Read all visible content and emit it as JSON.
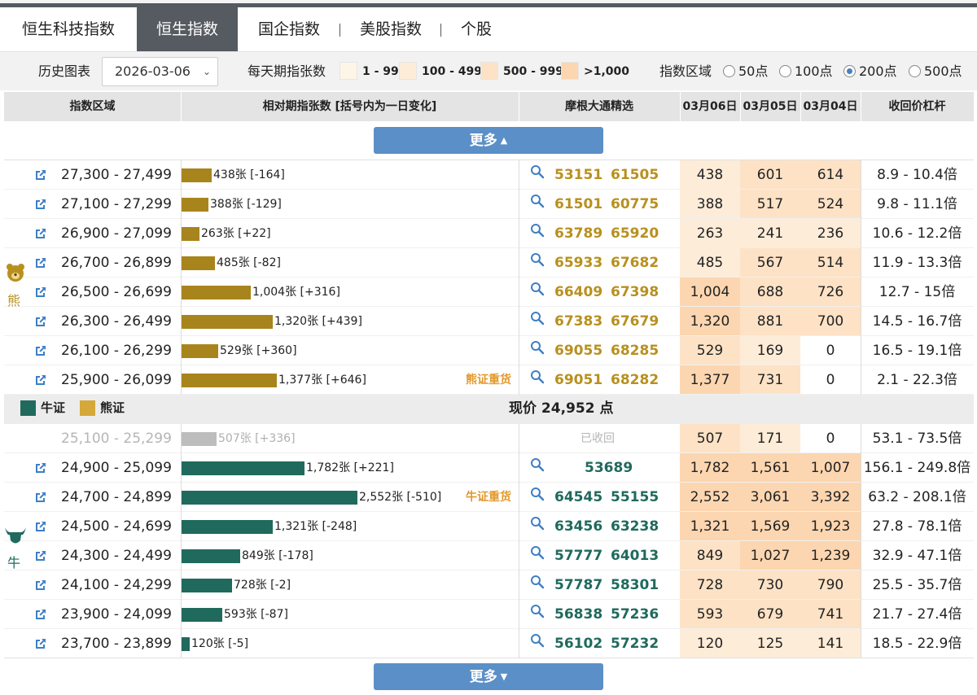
{
  "tabs": [
    "恒生科技指数",
    "恒生指数",
    "国企指数",
    "美股指数",
    "个股"
  ],
  "filter": {
    "history_label": "历史图表",
    "date": "2026-03-06",
    "daily_label": "每天期指张数",
    "legend": [
      {
        "label": "1 - 99",
        "color": "#fdf5e8"
      },
      {
        "label": "100 - 499",
        "color": "#fdecd8"
      },
      {
        "label": "500 - 999",
        "color": "#fde2c6"
      },
      {
        "label": ">1,000",
        "color": "#fcd6b0"
      }
    ],
    "zone_label": "指数区域",
    "zone_options": [
      "50点",
      "100点",
      "200点",
      "500点"
    ],
    "zone_selected": "200点"
  },
  "header": {
    "range": "指数区域",
    "relative": "相对期指张数 [括号内为一日变化]",
    "morgan": "摩根大通精选",
    "d1": "03月06日",
    "d2": "03月05日",
    "d3": "03月04日",
    "lev": "收回价杠杆"
  },
  "more_label": "更多",
  "bear_side": "熊",
  "bull_side": "牛",
  "hot_bear": "熊证重货",
  "hot_bull": "牛证重货",
  "recalled_label": "已收回",
  "legend_bull": "牛证",
  "legend_bear": "熊证",
  "current_price": "现价 24,952 点",
  "colors": {
    "bear": "#a8841c",
    "bull": "#1f6a5d",
    "recalled": "#bdbdbd",
    "button": "#5b8fc7",
    "hot": "#e3982a"
  },
  "bear_rows": [
    {
      "range": "27,300 - 27,499",
      "count": 438,
      "bar_label": "438张 [-164]",
      "codes": [
        "53151",
        "61505"
      ],
      "d1": "438",
      "d2": "601",
      "d3": "614",
      "lev": "8.9 - 10.4倍",
      "hot": false
    },
    {
      "range": "27,100 - 27,299",
      "count": 388,
      "bar_label": "388张 [-129]",
      "codes": [
        "61501",
        "60775"
      ],
      "d1": "388",
      "d2": "517",
      "d3": "524",
      "lev": "9.8 - 11.1倍",
      "hot": false
    },
    {
      "range": "26,900 - 27,099",
      "count": 263,
      "bar_label": "263张 [+22]",
      "codes": [
        "63789",
        "65920"
      ],
      "d1": "263",
      "d2": "241",
      "d3": "236",
      "lev": "10.6 - 12.2倍",
      "hot": false
    },
    {
      "range": "26,700 - 26,899",
      "count": 485,
      "bar_label": "485张 [-82]",
      "codes": [
        "65933",
        "67682"
      ],
      "d1": "485",
      "d2": "567",
      "d3": "514",
      "lev": "11.9 - 13.3倍",
      "hot": false
    },
    {
      "range": "26,500 - 26,699",
      "count": 1004,
      "bar_label": "1,004张 [+316]",
      "codes": [
        "66409",
        "67398"
      ],
      "d1": "1,004",
      "d2": "688",
      "d3": "726",
      "lev": "12.7 - 15倍",
      "hot": false
    },
    {
      "range": "26,300 - 26,499",
      "count": 1320,
      "bar_label": "1,320张 [+439]",
      "codes": [
        "67383",
        "67679"
      ],
      "d1": "1,320",
      "d2": "881",
      "d3": "700",
      "lev": "14.5 - 16.7倍",
      "hot": false
    },
    {
      "range": "26,100 - 26,299",
      "count": 529,
      "bar_label": "529张 [+360]",
      "codes": [
        "69055",
        "68285"
      ],
      "d1": "529",
      "d2": "169",
      "d3": "0",
      "lev": "16.5 - 19.1倍",
      "hot": false
    },
    {
      "range": "25,900 - 26,099",
      "count": 1377,
      "bar_label": "1,377张 [+646]",
      "codes": [
        "69051",
        "68282"
      ],
      "d1": "1,377",
      "d2": "731",
      "d3": "0",
      "lev": "2.1 - 22.3倍",
      "hot": true
    }
  ],
  "bull_rows": [
    {
      "range": "25,100 - 25,299",
      "count": 507,
      "bar_label": "507张 [+336]",
      "codes": [],
      "recalled": true,
      "d1": "507",
      "d2": "171",
      "d3": "0",
      "lev": "53.1 - 73.5倍",
      "hot": false
    },
    {
      "range": "24,900 - 25,099",
      "count": 1782,
      "bar_label": "1,782张 [+221]",
      "codes": [
        "53689"
      ],
      "d1": "1,782",
      "d2": "1,561",
      "d3": "1,007",
      "lev": "156.1 - 249.8倍",
      "hot": false
    },
    {
      "range": "24,700 - 24,899",
      "count": 2552,
      "bar_label": "2,552张 [-510]",
      "codes": [
        "64545",
        "55155"
      ],
      "d1": "2,552",
      "d2": "3,061",
      "d3": "3,392",
      "lev": "63.2 - 208.1倍",
      "hot": true
    },
    {
      "range": "24,500 - 24,699",
      "count": 1321,
      "bar_label": "1,321张 [-248]",
      "codes": [
        "63456",
        "63238"
      ],
      "d1": "1,321",
      "d2": "1,569",
      "d3": "1,923",
      "lev": "27.8 - 78.1倍",
      "hot": false
    },
    {
      "range": "24,300 - 24,499",
      "count": 849,
      "bar_label": "849张 [-178]",
      "codes": [
        "57777",
        "64013"
      ],
      "d1": "849",
      "d2": "1,027",
      "d3": "1,239",
      "lev": "32.9 - 47.1倍",
      "hot": false
    },
    {
      "range": "24,100 - 24,299",
      "count": 728,
      "bar_label": "728张 [-2]",
      "codes": [
        "57787",
        "58301"
      ],
      "d1": "728",
      "d2": "730",
      "d3": "790",
      "lev": "25.5 - 35.7倍",
      "hot": false
    },
    {
      "range": "23,900 - 24,099",
      "count": 593,
      "bar_label": "593张 [-87]",
      "codes": [
        "56838",
        "57236"
      ],
      "d1": "593",
      "d2": "679",
      "d3": "741",
      "lev": "21.7 - 27.4倍",
      "hot": false
    },
    {
      "range": "23,700 - 23,899",
      "count": 120,
      "bar_label": "120张 [-5]",
      "codes": [
        "56102",
        "57232"
      ],
      "d1": "120",
      "d2": "125",
      "d3": "141",
      "lev": "18.5 - 22.9倍",
      "hot": false
    }
  ]
}
